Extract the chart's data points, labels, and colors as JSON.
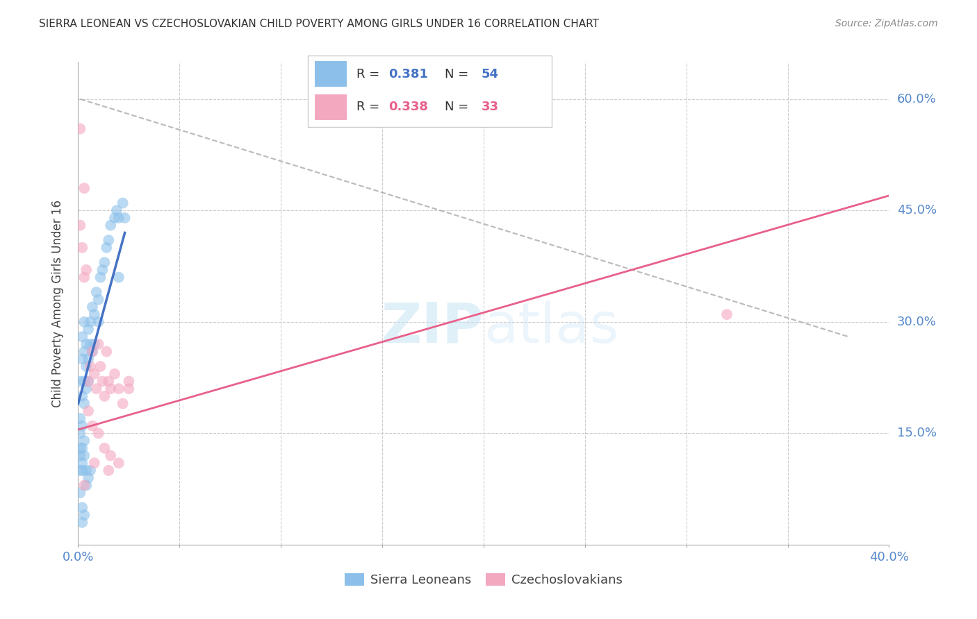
{
  "title": "SIERRA LEONEAN VS CZECHOSLOVAKIAN CHILD POVERTY AMONG GIRLS UNDER 16 CORRELATION CHART",
  "source": "Source: ZipAtlas.com",
  "ylabel": "Child Poverty Among Girls Under 16",
  "xlim": [
    0.0,
    0.4
  ],
  "ylim": [
    0.0,
    0.65
  ],
  "xtick_vals": [
    0.0,
    0.05,
    0.1,
    0.15,
    0.2,
    0.25,
    0.3,
    0.35,
    0.4
  ],
  "ytick_vals": [
    0.0,
    0.15,
    0.3,
    0.45,
    0.6
  ],
  "blue_R": 0.381,
  "blue_N": 54,
  "pink_R": 0.338,
  "pink_N": 33,
  "blue_color": "#8CC0EA",
  "pink_color": "#F4A8C0",
  "blue_line_color": "#4472C4",
  "pink_line_color": "#E8608A",
  "blue_label": "Sierra Leoneans",
  "pink_label": "Czechoslovakians",
  "legend_R_N_color": "#4472C4",
  "watermark_color": "#C8E4F5",
  "background": "#FFFFFF",
  "blue_x": [
    0.001,
    0.001,
    0.001,
    0.001,
    0.001,
    0.002,
    0.002,
    0.002,
    0.002,
    0.002,
    0.003,
    0.003,
    0.003,
    0.003,
    0.004,
    0.004,
    0.004,
    0.005,
    0.005,
    0.005,
    0.006,
    0.006,
    0.007,
    0.007,
    0.008,
    0.008,
    0.009,
    0.01,
    0.01,
    0.011,
    0.012,
    0.013,
    0.014,
    0.015,
    0.016,
    0.018,
    0.019,
    0.02,
    0.022,
    0.023,
    0.001,
    0.001,
    0.002,
    0.002,
    0.003,
    0.003,
    0.004,
    0.004,
    0.005,
    0.006,
    0.002,
    0.002,
    0.003,
    0.02
  ],
  "blue_y": [
    0.22,
    0.17,
    0.13,
    0.1,
    0.07,
    0.28,
    0.25,
    0.2,
    0.16,
    0.11,
    0.3,
    0.26,
    0.22,
    0.19,
    0.27,
    0.24,
    0.21,
    0.29,
    0.25,
    0.22,
    0.3,
    0.27,
    0.32,
    0.26,
    0.31,
    0.27,
    0.34,
    0.3,
    0.33,
    0.36,
    0.37,
    0.38,
    0.4,
    0.41,
    0.43,
    0.44,
    0.45,
    0.44,
    0.46,
    0.44,
    0.15,
    0.12,
    0.13,
    0.1,
    0.14,
    0.12,
    0.1,
    0.08,
    0.09,
    0.1,
    0.05,
    0.03,
    0.04,
    0.36
  ],
  "pink_x": [
    0.001,
    0.002,
    0.003,
    0.004,
    0.005,
    0.006,
    0.007,
    0.008,
    0.009,
    0.01,
    0.011,
    0.012,
    0.013,
    0.014,
    0.015,
    0.016,
    0.018,
    0.02,
    0.022,
    0.025,
    0.001,
    0.003,
    0.005,
    0.007,
    0.01,
    0.013,
    0.016,
    0.02,
    0.025,
    0.32,
    0.003,
    0.008,
    0.015
  ],
  "pink_y": [
    0.43,
    0.4,
    0.36,
    0.37,
    0.22,
    0.24,
    0.26,
    0.23,
    0.21,
    0.27,
    0.24,
    0.22,
    0.2,
    0.26,
    0.22,
    0.21,
    0.23,
    0.21,
    0.19,
    0.22,
    0.56,
    0.48,
    0.18,
    0.16,
    0.15,
    0.13,
    0.12,
    0.11,
    0.21,
    0.31,
    0.08,
    0.11,
    0.1
  ],
  "blue_line_x": [
    0.0,
    0.023
  ],
  "blue_line_y": [
    0.19,
    0.42
  ],
  "pink_line_x": [
    0.0,
    0.4
  ],
  "pink_line_y": [
    0.155,
    0.47
  ],
  "dash_line_x": [
    0.001,
    0.38
  ],
  "dash_line_y": [
    0.6,
    0.28
  ]
}
